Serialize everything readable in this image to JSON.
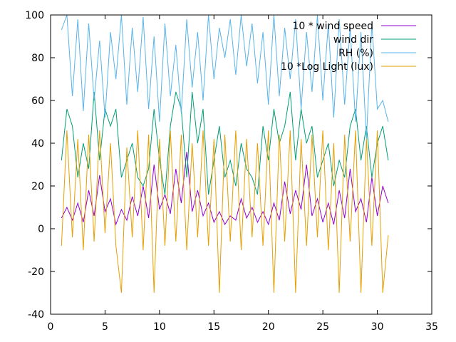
{
  "chart_data": {
    "type": "line",
    "title": "",
    "xlabel": "",
    "ylabel": "",
    "xlim": [
      0,
      35
    ],
    "ylim": [
      -40,
      100
    ],
    "xticks": [
      0,
      5,
      10,
      15,
      20,
      25,
      30,
      35
    ],
    "yticks": [
      -40,
      -20,
      0,
      20,
      40,
      60,
      80,
      100
    ],
    "x_tick_labels": [
      "0",
      "5",
      "10",
      "15",
      "20",
      "25",
      "30",
      "35"
    ],
    "y_tick_labels": [
      "-40",
      "-20",
      "0",
      "20",
      "40",
      "60",
      "80",
      "100"
    ],
    "grid": false,
    "legend_position": "top-right",
    "series": [
      {
        "name": "10 * wind speed",
        "color": "#9400d3",
        "x": [
          1,
          1.5,
          2,
          2.5,
          3,
          3.5,
          4,
          4.5,
          5,
          5.5,
          6,
          6.5,
          7,
          7.5,
          8,
          8.5,
          9,
          9.5,
          10,
          10.5,
          11,
          11.5,
          12,
          12.5,
          13,
          13.5,
          14,
          14.5,
          15,
          15.5,
          16,
          16.5,
          17,
          17.5,
          18,
          18.5,
          19,
          19.5,
          20,
          20.5,
          21,
          21.5,
          22,
          22.5,
          23,
          23.5,
          24,
          24.5,
          25,
          25.5,
          26,
          26.5,
          27,
          27.5,
          28,
          28.5,
          29,
          29.5,
          30,
          30.5,
          31
        ],
        "values": [
          5,
          10,
          4,
          12,
          3,
          18,
          6,
          25,
          8,
          14,
          2,
          9,
          4,
          15,
          6,
          20,
          5,
          30,
          9,
          16,
          7,
          28,
          12,
          36,
          8,
          18,
          6,
          12,
          3,
          8,
          2,
          6,
          4,
          14,
          5,
          10,
          3,
          8,
          2,
          12,
          4,
          22,
          7,
          18,
          9,
          30,
          6,
          14,
          3,
          12,
          2,
          18,
          5,
          28,
          8,
          14,
          3,
          24,
          6,
          20,
          12
        ]
      },
      {
        "name": "wind dir",
        "color": "#009e73",
        "x": [
          1,
          1.5,
          2,
          2.5,
          3,
          3.5,
          4,
          4.5,
          5,
          5.5,
          6,
          6.5,
          7,
          7.5,
          8,
          8.5,
          9,
          9.5,
          10,
          10.5,
          11,
          11.5,
          12,
          12.5,
          13,
          13.5,
          14,
          14.5,
          15,
          15.5,
          16,
          16.5,
          17,
          17.5,
          18,
          18.5,
          19,
          19.5,
          20,
          20.5,
          21,
          21.5,
          22,
          22.5,
          23,
          23.5,
          24,
          24.5,
          25,
          25.5,
          26,
          26.5,
          27,
          27.5,
          28,
          28.5,
          29,
          29.5,
          30,
          30.5,
          31
        ],
        "values": [
          32,
          56,
          48,
          24,
          40,
          28,
          64,
          32,
          56,
          48,
          56,
          24,
          32,
          40,
          24,
          20,
          28,
          56,
          32,
          16,
          48,
          64,
          56,
          24,
          64,
          40,
          56,
          16,
          32,
          48,
          24,
          32,
          20,
          40,
          28,
          24,
          16,
          48,
          32,
          56,
          40,
          48,
          64,
          32,
          56,
          40,
          48,
          24,
          32,
          40,
          20,
          32,
          24,
          48,
          56,
          32,
          48,
          24,
          40,
          48,
          32
        ]
      },
      {
        "name": "RH (%)",
        "color": "#56b4e9",
        "x": [
          1,
          1.5,
          2,
          2.5,
          3,
          3.5,
          4,
          4.5,
          5,
          5.5,
          6,
          6.5,
          7,
          7.5,
          8,
          8.5,
          9,
          9.5,
          10,
          10.5,
          11,
          11.5,
          12,
          12.5,
          13,
          13.5,
          14,
          14.5,
          15,
          15.5,
          16,
          16.5,
          17,
          17.5,
          18,
          18.5,
          19,
          19.5,
          20,
          20.5,
          21,
          21.5,
          22,
          22.5,
          23,
          23.5,
          24,
          24.5,
          25,
          25.5,
          26,
          26.5,
          27,
          27.5,
          28,
          28.5,
          29,
          29.5,
          30,
          30.5,
          31
        ],
        "values": [
          93,
          100,
          62,
          98,
          55,
          96,
          60,
          88,
          52,
          92,
          70,
          100,
          58,
          94,
          64,
          99,
          56,
          90,
          50,
          96,
          62,
          86,
          54,
          98,
          66,
          92,
          60,
          100,
          70,
          94,
          80,
          98,
          72,
          100,
          76,
          96,
          68,
          92,
          58,
          100,
          62,
          94,
          70,
          98,
          56,
          92,
          64,
          100,
          60,
          96,
          52,
          98,
          58,
          94,
          50,
          92,
          42,
          96,
          56,
          60,
          50
        ]
      },
      {
        "name": "10 *Log Light (lux)",
        "color": "#e69f00",
        "x": [
          1,
          1.5,
          2,
          2.5,
          3,
          3.5,
          4,
          4.5,
          5,
          5.5,
          6,
          6.5,
          7,
          7.5,
          8,
          8.5,
          9,
          9.5,
          10,
          10.5,
          11,
          11.5,
          12,
          12.5,
          13,
          13.5,
          14,
          14.5,
          15,
          15.5,
          16,
          16.5,
          17,
          17.5,
          18,
          18.5,
          19,
          19.5,
          20,
          20.5,
          21,
          21.5,
          22,
          22.5,
          23,
          23.5,
          24,
          24.5,
          25,
          25.5,
          26,
          26.5,
          27,
          27.5,
          28,
          28.5,
          29,
          29.5,
          30,
          30.5,
          31
        ],
        "values": [
          -8,
          46,
          -4,
          42,
          -10,
          44,
          -6,
          46,
          -2,
          40,
          -8,
          -30,
          38,
          -4,
          46,
          -10,
          44,
          -30,
          42,
          -8,
          46,
          -6,
          44,
          -10,
          40,
          -4,
          46,
          -8,
          42,
          -30,
          44,
          -6,
          46,
          -10,
          42,
          -4,
          40,
          -8,
          46,
          -30,
          44,
          -6,
          46,
          -30,
          42,
          -8,
          44,
          -4,
          46,
          -10,
          40,
          -30,
          44,
          -6,
          46,
          -30,
          42,
          -8,
          46,
          -30,
          -3
        ]
      }
    ]
  }
}
